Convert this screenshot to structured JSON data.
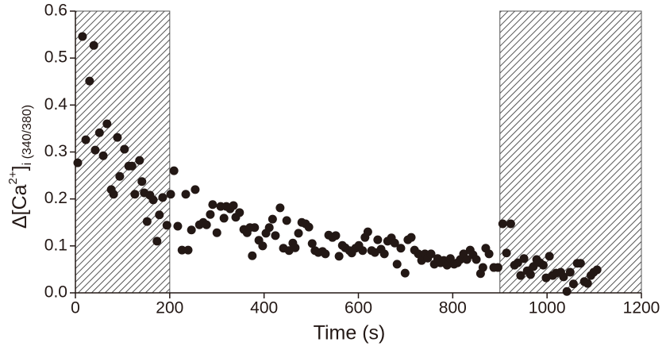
{
  "chart_data": {
    "type": "scatter",
    "xlabel": "Time (s)",
    "ylabel": {
      "text": "Δ[Ca",
      "superscript": "2+",
      "close": "]",
      "subscript": "i (340/380)"
    },
    "xlim": [
      0,
      1200
    ],
    "xticks": [
      0,
      200,
      400,
      600,
      800,
      1000,
      1200
    ],
    "ylim": [
      0,
      0.6
    ],
    "yticks": [
      {
        "value": 0,
        "label": "0.0"
      },
      0.1,
      0.2,
      0.3,
      0.4,
      0.5,
      0.6
    ],
    "shaded_regions": [
      [
        0,
        200
      ],
      [
        900,
        1200
      ]
    ],
    "color": "#231815",
    "x": [
      5,
      15,
      22,
      30,
      39,
      42,
      51,
      59,
      67,
      76,
      81,
      89,
      94,
      104,
      113,
      120,
      126,
      136,
      141,
      146,
      152,
      158,
      165,
      173,
      178,
      185,
      194,
      202,
      209,
      217,
      226,
      234,
      239,
      246,
      254,
      263,
      271,
      278,
      286,
      291,
      300,
      308,
      315,
      320,
      328,
      335,
      340,
      348,
      357,
      364,
      370,
      375,
      380,
      389,
      397,
      404,
      411,
      418,
      424,
      434,
      441,
      448,
      453,
      461,
      466,
      473,
      480,
      488,
      495,
      502,
      508,
      515,
      524,
      530,
      537,
      545,
      552,
      559,
      566,
      572,
      581,
      586,
      594,
      601,
      609,
      614,
      620,
      628,
      635,
      641,
      648,
      655,
      662,
      670,
      677,
      682,
      690,
      699,
      705,
      712,
      719,
      727,
      734,
      741,
      747,
      754,
      761,
      768,
      774,
      781,
      788,
      795,
      803,
      810,
      816,
      823,
      830,
      837,
      843,
      850,
      859,
      864,
      870,
      877,
      887,
      896,
      906,
      914,
      923,
      931,
      938,
      944,
      951,
      958,
      965,
      971,
      978,
      985,
      992,
      998,
      1005,
      1012,
      1019,
      1029,
      1035,
      1042,
      1049,
      1056,
      1064,
      1071,
      1079,
      1086,
      1093,
      1099,
      1106
    ],
    "values": [
      0.277,
      0.546,
      0.326,
      0.451,
      0.527,
      0.304,
      0.341,
      0.292,
      0.36,
      0.22,
      0.21,
      0.331,
      0.248,
      0.306,
      0.27,
      0.27,
      0.21,
      0.282,
      0.237,
      0.213,
      0.152,
      0.208,
      0.198,
      0.11,
      0.166,
      0.203,
      0.144,
      0.21,
      0.26,
      0.142,
      0.091,
      0.21,
      0.091,
      0.134,
      0.22,
      0.145,
      0.15,
      0.145,
      0.167,
      0.188,
      0.128,
      0.184,
      0.159,
      0.184,
      0.179,
      0.186,
      0.161,
      0.171,
      0.135,
      0.128,
      0.139,
      0.079,
      0.139,
      0.112,
      0.1,
      0.127,
      0.139,
      0.157,
      0.122,
      0.181,
      0.095,
      0.154,
      0.09,
      0.106,
      0.096,
      0.127,
      0.15,
      0.147,
      0.14,
      0.105,
      0.09,
      0.086,
      0.088,
      0.083,
      0.123,
      0.118,
      0.122,
      0.078,
      0.101,
      0.096,
      0.09,
      0.085,
      0.095,
      0.101,
      0.09,
      0.118,
      0.13,
      0.09,
      0.086,
      0.113,
      0.093,
      0.083,
      0.11,
      0.117,
      0.106,
      0.061,
      0.095,
      0.042,
      0.113,
      0.118,
      0.091,
      0.083,
      0.069,
      0.083,
      0.074,
      0.083,
      0.061,
      0.073,
      0.064,
      0.069,
      0.059,
      0.073,
      0.061,
      0.064,
      0.071,
      0.083,
      0.071,
      0.091,
      0.081,
      0.071,
      0.041,
      0.054,
      0.095,
      0.083,
      0.054,
      0.054,
      0.147,
      0.085,
      0.147,
      0.059,
      0.064,
      0.037,
      0.073,
      0.047,
      0.039,
      0.056,
      0.071,
      0.064,
      0.059,
      0.032,
      0.078,
      0.037,
      0.042,
      0.044,
      0.034,
      0.003,
      0.044,
      0.019,
      0.063,
      0.063,
      0.024,
      0.02,
      0.037,
      0.044,
      0.049
    ]
  }
}
